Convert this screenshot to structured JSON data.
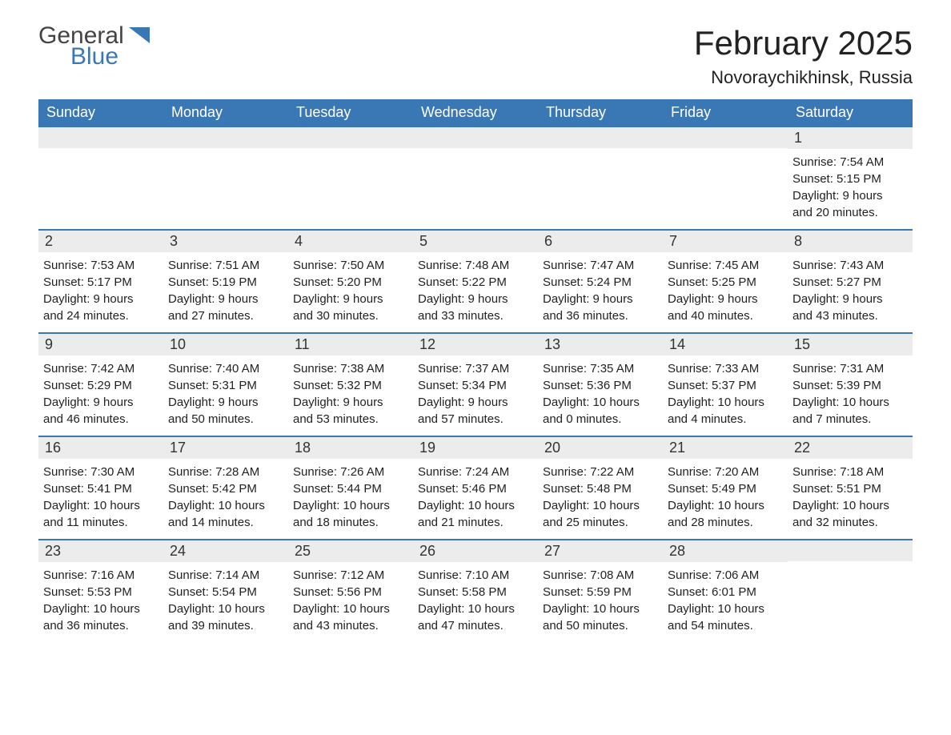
{
  "logo": {
    "line1": "General",
    "line2": "Blue"
  },
  "colors": {
    "brand_blue": "#3a78b5",
    "header_text": "#ffffff",
    "daynum_bg": "#ececec",
    "body_text": "#222222",
    "page_bg": "#ffffff"
  },
  "fonts": {
    "title_pt": 42,
    "location_pt": 22,
    "dayhead_pt": 18,
    "daynum_pt": 18,
    "body_pt": 15
  },
  "title": "February 2025",
  "location": "Novoraychikhinsk, Russia",
  "day_headers": [
    "Sunday",
    "Monday",
    "Tuesday",
    "Wednesday",
    "Thursday",
    "Friday",
    "Saturday"
  ],
  "weeks": [
    [
      null,
      null,
      null,
      null,
      null,
      null,
      {
        "n": "1",
        "sr": "Sunrise: 7:54 AM",
        "ss": "Sunset: 5:15 PM",
        "dl1": "Daylight: 9 hours",
        "dl2": "and 20 minutes."
      }
    ],
    [
      {
        "n": "2",
        "sr": "Sunrise: 7:53 AM",
        "ss": "Sunset: 5:17 PM",
        "dl1": "Daylight: 9 hours",
        "dl2": "and 24 minutes."
      },
      {
        "n": "3",
        "sr": "Sunrise: 7:51 AM",
        "ss": "Sunset: 5:19 PM",
        "dl1": "Daylight: 9 hours",
        "dl2": "and 27 minutes."
      },
      {
        "n": "4",
        "sr": "Sunrise: 7:50 AM",
        "ss": "Sunset: 5:20 PM",
        "dl1": "Daylight: 9 hours",
        "dl2": "and 30 minutes."
      },
      {
        "n": "5",
        "sr": "Sunrise: 7:48 AM",
        "ss": "Sunset: 5:22 PM",
        "dl1": "Daylight: 9 hours",
        "dl2": "and 33 minutes."
      },
      {
        "n": "6",
        "sr": "Sunrise: 7:47 AM",
        "ss": "Sunset: 5:24 PM",
        "dl1": "Daylight: 9 hours",
        "dl2": "and 36 minutes."
      },
      {
        "n": "7",
        "sr": "Sunrise: 7:45 AM",
        "ss": "Sunset: 5:25 PM",
        "dl1": "Daylight: 9 hours",
        "dl2": "and 40 minutes."
      },
      {
        "n": "8",
        "sr": "Sunrise: 7:43 AM",
        "ss": "Sunset: 5:27 PM",
        "dl1": "Daylight: 9 hours",
        "dl2": "and 43 minutes."
      }
    ],
    [
      {
        "n": "9",
        "sr": "Sunrise: 7:42 AM",
        "ss": "Sunset: 5:29 PM",
        "dl1": "Daylight: 9 hours",
        "dl2": "and 46 minutes."
      },
      {
        "n": "10",
        "sr": "Sunrise: 7:40 AM",
        "ss": "Sunset: 5:31 PM",
        "dl1": "Daylight: 9 hours",
        "dl2": "and 50 minutes."
      },
      {
        "n": "11",
        "sr": "Sunrise: 7:38 AM",
        "ss": "Sunset: 5:32 PM",
        "dl1": "Daylight: 9 hours",
        "dl2": "and 53 minutes."
      },
      {
        "n": "12",
        "sr": "Sunrise: 7:37 AM",
        "ss": "Sunset: 5:34 PM",
        "dl1": "Daylight: 9 hours",
        "dl2": "and 57 minutes."
      },
      {
        "n": "13",
        "sr": "Sunrise: 7:35 AM",
        "ss": "Sunset: 5:36 PM",
        "dl1": "Daylight: 10 hours",
        "dl2": "and 0 minutes."
      },
      {
        "n": "14",
        "sr": "Sunrise: 7:33 AM",
        "ss": "Sunset: 5:37 PM",
        "dl1": "Daylight: 10 hours",
        "dl2": "and 4 minutes."
      },
      {
        "n": "15",
        "sr": "Sunrise: 7:31 AM",
        "ss": "Sunset: 5:39 PM",
        "dl1": "Daylight: 10 hours",
        "dl2": "and 7 minutes."
      }
    ],
    [
      {
        "n": "16",
        "sr": "Sunrise: 7:30 AM",
        "ss": "Sunset: 5:41 PM",
        "dl1": "Daylight: 10 hours",
        "dl2": "and 11 minutes."
      },
      {
        "n": "17",
        "sr": "Sunrise: 7:28 AM",
        "ss": "Sunset: 5:42 PM",
        "dl1": "Daylight: 10 hours",
        "dl2": "and 14 minutes."
      },
      {
        "n": "18",
        "sr": "Sunrise: 7:26 AM",
        "ss": "Sunset: 5:44 PM",
        "dl1": "Daylight: 10 hours",
        "dl2": "and 18 minutes."
      },
      {
        "n": "19",
        "sr": "Sunrise: 7:24 AM",
        "ss": "Sunset: 5:46 PM",
        "dl1": "Daylight: 10 hours",
        "dl2": "and 21 minutes."
      },
      {
        "n": "20",
        "sr": "Sunrise: 7:22 AM",
        "ss": "Sunset: 5:48 PM",
        "dl1": "Daylight: 10 hours",
        "dl2": "and 25 minutes."
      },
      {
        "n": "21",
        "sr": "Sunrise: 7:20 AM",
        "ss": "Sunset: 5:49 PM",
        "dl1": "Daylight: 10 hours",
        "dl2": "and 28 minutes."
      },
      {
        "n": "22",
        "sr": "Sunrise: 7:18 AM",
        "ss": "Sunset: 5:51 PM",
        "dl1": "Daylight: 10 hours",
        "dl2": "and 32 minutes."
      }
    ],
    [
      {
        "n": "23",
        "sr": "Sunrise: 7:16 AM",
        "ss": "Sunset: 5:53 PM",
        "dl1": "Daylight: 10 hours",
        "dl2": "and 36 minutes."
      },
      {
        "n": "24",
        "sr": "Sunrise: 7:14 AM",
        "ss": "Sunset: 5:54 PM",
        "dl1": "Daylight: 10 hours",
        "dl2": "and 39 minutes."
      },
      {
        "n": "25",
        "sr": "Sunrise: 7:12 AM",
        "ss": "Sunset: 5:56 PM",
        "dl1": "Daylight: 10 hours",
        "dl2": "and 43 minutes."
      },
      {
        "n": "26",
        "sr": "Sunrise: 7:10 AM",
        "ss": "Sunset: 5:58 PM",
        "dl1": "Daylight: 10 hours",
        "dl2": "and 47 minutes."
      },
      {
        "n": "27",
        "sr": "Sunrise: 7:08 AM",
        "ss": "Sunset: 5:59 PM",
        "dl1": "Daylight: 10 hours",
        "dl2": "and 50 minutes."
      },
      {
        "n": "28",
        "sr": "Sunrise: 7:06 AM",
        "ss": "Sunset: 6:01 PM",
        "dl1": "Daylight: 10 hours",
        "dl2": "and 54 minutes."
      },
      null
    ]
  ]
}
